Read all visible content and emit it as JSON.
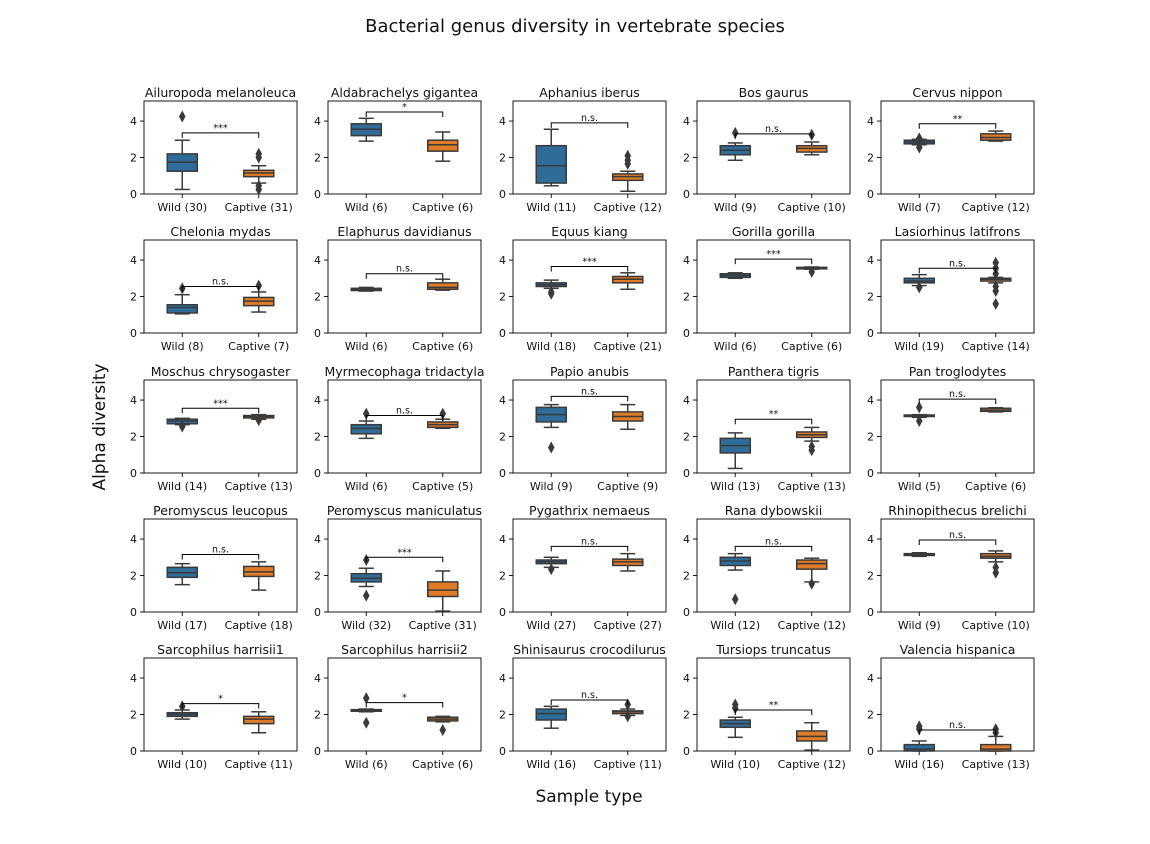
{
  "chart_data": {
    "type": "boxplot",
    "title": "Bacterial genus diversity in vertebrate species",
    "xlabel": "Sample type",
    "ylabel": "Alpha diversity",
    "ylim": [
      0,
      5.1
    ],
    "yticks": [
      0,
      2,
      4
    ],
    "grid": false,
    "colors": {
      "Wild": "#2f6c99",
      "Captive": "#e07b27",
      "edge": "#3a3a3a"
    },
    "panels": [
      {
        "title": "Ailuropoda melanoleuca",
        "significance": "***",
        "bracket_y": 3.35,
        "groups": [
          {
            "label": "Wild (30)",
            "whislo": 0.25,
            "q1": 1.25,
            "med": 1.75,
            "q3": 2.2,
            "whishi": 2.95,
            "fliers": [
              4.25
            ]
          },
          {
            "label": "Captive (31)",
            "whislo": 0.6,
            "q1": 0.95,
            "med": 1.15,
            "q3": 1.3,
            "whishi": 1.55,
            "fliers": [
              2.2,
              2.0,
              0.45,
              0.25
            ]
          }
        ]
      },
      {
        "title": "Aldabrachelys gigantea",
        "significance": "*",
        "bracket_y": 4.5,
        "groups": [
          {
            "label": "Wild (6)",
            "whislo": 2.9,
            "q1": 3.2,
            "med": 3.55,
            "q3": 3.85,
            "whishi": 4.15,
            "fliers": []
          },
          {
            "label": "Captive (6)",
            "whislo": 1.8,
            "q1": 2.35,
            "med": 2.7,
            "q3": 2.95,
            "whishi": 3.4,
            "fliers": []
          }
        ]
      },
      {
        "title": "Aphanius iberus",
        "significance": "n.s.",
        "bracket_y": 3.9,
        "groups": [
          {
            "label": "Wild (11)",
            "whislo": 0.45,
            "q1": 0.6,
            "med": 1.55,
            "q3": 2.65,
            "whishi": 3.55,
            "fliers": []
          },
          {
            "label": "Captive (12)",
            "whislo": 0.15,
            "q1": 0.75,
            "med": 0.95,
            "q3": 1.1,
            "whishi": 1.25,
            "fliers": [
              2.1,
              1.85,
              1.65
            ]
          }
        ]
      },
      {
        "title": "Bos gaurus",
        "significance": "n.s.",
        "bracket_y": 3.3,
        "groups": [
          {
            "label": "Wild (9)",
            "whislo": 1.85,
            "q1": 2.15,
            "med": 2.4,
            "q3": 2.65,
            "whishi": 2.8,
            "fliers": [
              3.35
            ]
          },
          {
            "label": "Captive (10)",
            "whislo": 2.15,
            "q1": 2.3,
            "med": 2.5,
            "q3": 2.65,
            "whishi": 2.85,
            "fliers": [
              3.25
            ]
          }
        ]
      },
      {
        "title": "Cervus nippon",
        "significance": "**",
        "bracket_y": 3.85,
        "groups": [
          {
            "label": "Wild (7)",
            "whislo": 2.7,
            "q1": 2.75,
            "med": 2.85,
            "q3": 2.95,
            "whishi": 3.0,
            "fliers": [
              3.05,
              2.55
            ]
          },
          {
            "label": "Captive (12)",
            "whislo": 2.9,
            "q1": 2.95,
            "med": 3.1,
            "q3": 3.3,
            "whishi": 3.45,
            "fliers": []
          }
        ]
      },
      {
        "title": "Chelonia mydas",
        "significance": "n.s.",
        "bracket_y": 2.55,
        "groups": [
          {
            "label": "Wild (8)",
            "whislo": 1.05,
            "q1": 1.1,
            "med": 1.4,
            "q3": 1.55,
            "whishi": 2.1,
            "fliers": [
              2.45
            ]
          },
          {
            "label": "Captive (7)",
            "whislo": 1.15,
            "q1": 1.5,
            "med": 1.75,
            "q3": 1.95,
            "whishi": 2.25,
            "fliers": [
              2.6
            ]
          }
        ]
      },
      {
        "title": "Elaphurus davidianus",
        "significance": "n.s.",
        "bracket_y": 3.25,
        "groups": [
          {
            "label": "Wild (6)",
            "whislo": 2.3,
            "q1": 2.33,
            "med": 2.4,
            "q3": 2.45,
            "whishi": 2.5,
            "fliers": []
          },
          {
            "label": "Captive (6)",
            "whislo": 2.35,
            "q1": 2.4,
            "med": 2.5,
            "q3": 2.75,
            "whishi": 2.95,
            "fliers": []
          }
        ]
      },
      {
        "title": "Equus kiang",
        "significance": "***",
        "bracket_y": 3.65,
        "groups": [
          {
            "label": "Wild (18)",
            "whislo": 2.45,
            "q1": 2.55,
            "med": 2.65,
            "q3": 2.75,
            "whishi": 2.9,
            "fliers": [
              2.25,
              2.15
            ]
          },
          {
            "label": "Captive (21)",
            "whislo": 2.4,
            "q1": 2.75,
            "med": 2.95,
            "q3": 3.1,
            "whishi": 3.3,
            "fliers": []
          }
        ]
      },
      {
        "title": "Gorilla gorilla",
        "significance": "***",
        "bracket_y": 4.05,
        "groups": [
          {
            "label": "Wild (6)",
            "whislo": 3.0,
            "q1": 3.05,
            "med": 3.15,
            "q3": 3.25,
            "whishi": 3.3,
            "fliers": []
          },
          {
            "label": "Captive (6)",
            "whislo": 3.5,
            "q1": 3.52,
            "med": 3.55,
            "q3": 3.6,
            "whishi": 3.62,
            "fliers": [
              3.35
            ]
          }
        ]
      },
      {
        "title": "Lasiorhinus latifrons",
        "significance": "n.s.",
        "bracket_y": 3.55,
        "groups": [
          {
            "label": "Wild (19)",
            "whislo": 2.6,
            "q1": 2.75,
            "med": 2.85,
            "q3": 3.0,
            "whishi": 3.2,
            "fliers": [
              2.5
            ]
          },
          {
            "label": "Captive (14)",
            "whislo": 2.75,
            "q1": 2.85,
            "med": 2.95,
            "q3": 3.0,
            "whishi": 3.05,
            "fliers": [
              3.85,
              3.55,
              3.25,
              2.55,
              2.3,
              1.6
            ]
          }
        ]
      },
      {
        "title": "Moschus chrysogaster",
        "significance": "***",
        "bracket_y": 3.55,
        "groups": [
          {
            "label": "Wild (14)",
            "whislo": 2.65,
            "q1": 2.7,
            "med": 2.85,
            "q3": 2.95,
            "whishi": 3.0,
            "fliers": [
              2.55
            ]
          },
          {
            "label": "Captive (13)",
            "whislo": 2.95,
            "q1": 3.02,
            "med": 3.1,
            "q3": 3.15,
            "whishi": 3.2,
            "fliers": [
              2.9
            ]
          }
        ]
      },
      {
        "title": "Myrmecophaga tridactyla",
        "significance": "n.s.",
        "bracket_y": 3.15,
        "groups": [
          {
            "label": "Wild (6)",
            "whislo": 1.9,
            "q1": 2.15,
            "med": 2.45,
            "q3": 2.65,
            "whishi": 2.85,
            "fliers": [
              3.25
            ]
          },
          {
            "label": "Captive (5)",
            "whislo": 2.45,
            "q1": 2.5,
            "med": 2.65,
            "q3": 2.8,
            "whishi": 2.95,
            "fliers": [
              3.25
            ]
          }
        ]
      },
      {
        "title": "Papio anubis",
        "significance": "n.s.",
        "bracket_y": 4.2,
        "groups": [
          {
            "label": "Wild (9)",
            "whislo": 2.5,
            "q1": 2.8,
            "med": 3.2,
            "q3": 3.6,
            "whishi": 3.75,
            "fliers": [
              1.4
            ]
          },
          {
            "label": "Captive (9)",
            "whislo": 2.4,
            "q1": 2.85,
            "med": 3.1,
            "q3": 3.35,
            "whishi": 3.75,
            "fliers": []
          }
        ]
      },
      {
        "title": "Panthera tigris",
        "significance": "**",
        "bracket_y": 2.95,
        "groups": [
          {
            "label": "Wild (13)",
            "whislo": 0.25,
            "q1": 1.1,
            "med": 1.5,
            "q3": 1.9,
            "whishi": 2.2,
            "fliers": []
          },
          {
            "label": "Captive (13)",
            "whislo": 1.75,
            "q1": 1.95,
            "med": 2.1,
            "q3": 2.25,
            "whishi": 2.5,
            "fliers": [
              1.45,
              1.25
            ]
          }
        ]
      },
      {
        "title": "Pan troglodytes",
        "significance": "n.s.",
        "bracket_y": 4.05,
        "groups": [
          {
            "label": "Wild (5)",
            "whislo": 3.05,
            "q1": 3.1,
            "med": 3.15,
            "q3": 3.18,
            "whishi": 3.2,
            "fliers": [
              3.6,
              2.85
            ]
          },
          {
            "label": "Captive (6)",
            "whislo": 3.35,
            "q1": 3.38,
            "med": 3.45,
            "q3": 3.55,
            "whishi": 3.58,
            "fliers": []
          }
        ]
      },
      {
        "title": "Peromyscus leucopus",
        "significance": "n.s.",
        "bracket_y": 3.15,
        "groups": [
          {
            "label": "Wild (17)",
            "whislo": 1.5,
            "q1": 1.9,
            "med": 2.15,
            "q3": 2.45,
            "whishi": 2.65,
            "fliers": []
          },
          {
            "label": "Captive (18)",
            "whislo": 1.2,
            "q1": 1.95,
            "med": 2.2,
            "q3": 2.5,
            "whishi": 2.75,
            "fliers": []
          }
        ]
      },
      {
        "title": "Peromyscus maniculatus",
        "significance": "***",
        "bracket_y": 3.0,
        "groups": [
          {
            "label": "Wild (32)",
            "whislo": 1.4,
            "q1": 1.65,
            "med": 1.85,
            "q3": 2.1,
            "whishi": 2.4,
            "fliers": [
              2.85,
              0.9
            ]
          },
          {
            "label": "Captive (31)",
            "whislo": 0.05,
            "q1": 0.85,
            "med": 1.2,
            "q3": 1.65,
            "whishi": 2.25,
            "fliers": []
          }
        ]
      },
      {
        "title": "Pygathrix nemaeus",
        "significance": "n.s.",
        "bracket_y": 3.6,
        "groups": [
          {
            "label": "Wild (27)",
            "whislo": 2.45,
            "q1": 2.65,
            "med": 2.75,
            "q3": 2.85,
            "whishi": 3.0,
            "fliers": [
              2.35
            ]
          },
          {
            "label": "Captive (27)",
            "whislo": 2.25,
            "q1": 2.55,
            "med": 2.75,
            "q3": 2.9,
            "whishi": 3.2,
            "fliers": []
          }
        ]
      },
      {
        "title": "Rana dybowskii",
        "significance": "n.s.",
        "bracket_y": 3.6,
        "groups": [
          {
            "label": "Wild (12)",
            "whislo": 2.3,
            "q1": 2.55,
            "med": 2.8,
            "q3": 3.0,
            "whishi": 3.2,
            "fliers": [
              0.7
            ]
          },
          {
            "label": "Captive (12)",
            "whislo": 1.65,
            "q1": 2.35,
            "med": 2.65,
            "q3": 2.85,
            "whishi": 2.95,
            "fliers": [
              1.55
            ]
          }
        ]
      },
      {
        "title": "Rhinopithecus brelichi",
        "significance": "n.s.",
        "bracket_y": 3.95,
        "groups": [
          {
            "label": "Wild (9)",
            "whislo": 3.05,
            "q1": 3.1,
            "med": 3.15,
            "q3": 3.2,
            "whishi": 3.25,
            "fliers": []
          },
          {
            "label": "Captive (10)",
            "whislo": 2.75,
            "q1": 2.95,
            "med": 3.05,
            "q3": 3.2,
            "whishi": 3.35,
            "fliers": [
              2.45,
              2.15
            ]
          }
        ]
      },
      {
        "title": "Sarcophilus harrisii1",
        "significance": "*",
        "bracket_y": 2.6,
        "groups": [
          {
            "label": "Wild (10)",
            "whislo": 1.75,
            "q1": 1.9,
            "med": 2.0,
            "q3": 2.1,
            "whishi": 2.25,
            "fliers": [
              2.45
            ]
          },
          {
            "label": "Captive (11)",
            "whislo": 1.0,
            "q1": 1.5,
            "med": 1.75,
            "q3": 1.9,
            "whishi": 2.15,
            "fliers": []
          }
        ]
      },
      {
        "title": "Sarcophilus harrisii2",
        "significance": "*",
        "bracket_y": 2.65,
        "groups": [
          {
            "label": "Wild (6)",
            "whislo": 2.15,
            "q1": 2.18,
            "med": 2.22,
            "q3": 2.27,
            "whishi": 2.3,
            "fliers": [
              2.9,
              1.55
            ]
          },
          {
            "label": "Captive (6)",
            "whislo": 1.6,
            "q1": 1.65,
            "med": 1.75,
            "q3": 1.85,
            "whishi": 1.9,
            "fliers": [
              1.15
            ]
          }
        ]
      },
      {
        "title": "Shinisaurus crocodilurus",
        "significance": "n.s.",
        "bracket_y": 2.8,
        "groups": [
          {
            "label": "Wild (16)",
            "whislo": 1.25,
            "q1": 1.7,
            "med": 2.05,
            "q3": 2.3,
            "whishi": 2.45,
            "fliers": []
          },
          {
            "label": "Captive (11)",
            "whislo": 1.95,
            "q1": 2.05,
            "med": 2.15,
            "q3": 2.2,
            "whishi": 2.3,
            "fliers": [
              2.55,
              1.9
            ]
          }
        ]
      },
      {
        "title": "Tursiops truncatus",
        "significance": "**",
        "bracket_y": 2.25,
        "groups": [
          {
            "label": "Wild (10)",
            "whislo": 0.75,
            "q1": 1.3,
            "med": 1.5,
            "q3": 1.7,
            "whishi": 1.85,
            "fliers": [
              2.55,
              2.35
            ]
          },
          {
            "label": "Captive (12)",
            "whislo": 0.05,
            "q1": 0.55,
            "med": 0.8,
            "q3": 1.1,
            "whishi": 1.55,
            "fliers": []
          }
        ]
      },
      {
        "title": "Valencia hispanica",
        "significance": "n.s.",
        "bracket_y": 1.15,
        "groups": [
          {
            "label": "Wild (16)",
            "whislo": 0.0,
            "q1": 0.0,
            "med": 0.1,
            "q3": 0.35,
            "whishi": 0.55,
            "fliers": [
              1.35,
              1.2
            ]
          },
          {
            "label": "Captive (13)",
            "whislo": 0.0,
            "q1": 0.0,
            "med": 0.1,
            "q3": 0.35,
            "whishi": 0.8,
            "fliers": [
              1.2,
              1.0
            ]
          }
        ]
      }
    ]
  }
}
